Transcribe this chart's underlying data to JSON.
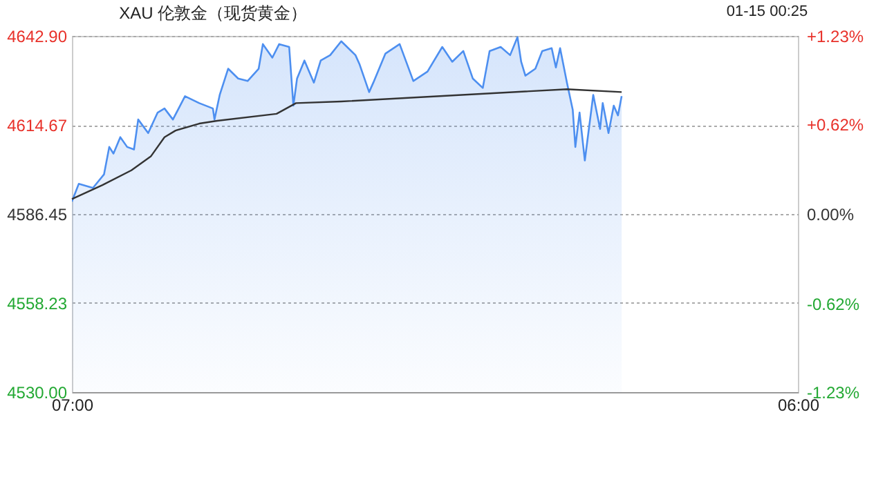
{
  "chart_data": {
    "type": "line",
    "title": "XAU 伦敦金（现货黄金）",
    "annotations": [
      "01-15 00:25"
    ],
    "xlim": [
      "--01-14T07:00",
      "--01-15T06:00"
    ],
    "xticks": [
      {
        "value": "--01-14T07:00",
        "label": "07:00"
      },
      {
        "value": "--01-15T06:00",
        "label": "06:00"
      }
    ],
    "ylim": [
      4530,
      4642.9
    ],
    "yticks": [
      {
        "value": 4530,
        "label": "4530.00"
      },
      4558.23,
      4586.45,
      4614.67,
      {
        "value": 4642.9,
        "label": "4642.90"
      }
    ],
    "y2lim": [
      -1.23,
      1.23
    ],
    "y2ticks": [
      {
        "value": -1.23,
        "label": "-1.23%"
      },
      {
        "value": -0.62,
        "label": "-0.62%"
      },
      {
        "value": 0,
        "label": "0.00%"
      },
      {
        "value": 0.62,
        "label": "+0.62%"
      },
      {
        "value": 1.23,
        "label": "+1.23%"
      }
    ],
    "grid": "y",
    "line_style": "solid",
    "series": [
      {
        "type": "area",
        "color": "#4d8ff0",
        "x": [
          "--01-14T07:00",
          "--01-14T07:13",
          "--01-14T07:40",
          "--01-14T08:01",
          "--01-14T08:11",
          "--01-14T08:19",
          "--01-14T08:32",
          "--01-14T08:45",
          "--01-14T08:58",
          "--01-14T09:06",
          "--01-14T09:25",
          "--01-14T09:43",
          "--01-14T09:56",
          "--01-14T10:12",
          "--01-14T10:35",
          "--01-14T11:02",
          "--01-14T11:28",
          "--01-14T11:31",
          "--01-14T11:41",
          "--01-14T11:57",
          "--01-14T12:16",
          "--01-14T12:34",
          "--01-14T12:55",
          "--01-14T13:03",
          "--01-14T13:21",
          "--01-14T13:34",
          "--01-14T13:53",
          "--01-14T14:01",
          "--01-14T14:08",
          "--01-14T14:22",
          "--01-14T14:40",
          "--01-14T14:53",
          "--01-14T15:11",
          "--01-14T15:32",
          "--01-14T15:59",
          "--01-14T16:07",
          "--01-14T16:25",
          "--01-14T16:33",
          "--01-14T16:56",
          "--01-14T17:23",
          "--01-14T17:49",
          "--01-14T18:16",
          "--01-14T18:44",
          "--01-14T19:03",
          "--01-14T19:24",
          "--01-14T19:42",
          "--01-14T20:01",
          "--01-14T20:14",
          "--01-14T20:35",
          "--01-14T20:53",
          "--01-14T21:07",
          "--01-14T21:14",
          "--01-14T21:22",
          "--01-14T21:41",
          "--01-14T21:54",
          "--01-14T22:12",
          "--01-14T22:20",
          "--01-14T22:28",
          "--01-14T22:41",
          "--01-14T22:52",
          "--01-14T22:57",
          "--01-14T23:05",
          "--01-14T23:15",
          "--01-14T23:31",
          "--01-14T23:44",
          "--01-14T23:49",
          "--01-15T00:00",
          "--01-15T00:10",
          "--01-15T00:18",
          "--01-15T00:25"
        ],
        "values": [
          4590.4,
          4596.0,
          4594.7,
          4599.0,
          4607.7,
          4605.6,
          4610.8,
          4607.7,
          4606.9,
          4616.4,
          4612.1,
          4618.6,
          4619.9,
          4616.4,
          4623.8,
          4621.6,
          4619.9,
          4616.4,
          4624.2,
          4632.5,
          4629.4,
          4628.6,
          4632.5,
          4640.3,
          4636.0,
          4640.3,
          4639.4,
          4620.8,
          4629.4,
          4635.1,
          4628.1,
          4635.1,
          4636.8,
          4641.2,
          4636.8,
          4633.8,
          4625.1,
          4628.1,
          4637.3,
          4640.3,
          4628.6,
          4631.6,
          4639.4,
          4634.7,
          4638.1,
          4629.4,
          4626.4,
          4638.1,
          4639.4,
          4636.8,
          4642.5,
          4634.7,
          4630.3,
          4632.5,
          4638.1,
          4639.0,
          4632.9,
          4639.0,
          4628.1,
          4619.5,
          4607.7,
          4618.6,
          4603.4,
          4624.2,
          4613.4,
          4621.6,
          4612.1,
          4620.8,
          4617.7,
          4623.8
        ]
      },
      {
        "type": "line",
        "color": "#333333",
        "x": [
          "--01-14T07:00",
          "--01-14T07:58",
          "--01-14T08:53",
          "--01-14T09:30",
          "--01-14T09:56",
          "--01-14T10:17",
          "--01-14T11:02",
          "--01-14T11:36",
          "--01-14T13:29",
          "--01-14T14:06",
          "--01-14T15:32",
          "--01-14T22:41",
          "--01-15T00:25"
        ],
        "values": [
          4591.2,
          4595.6,
          4600.3,
          4604.7,
          4610.8,
          4612.9,
          4615.1,
          4616.0,
          4618.2,
          4621.6,
          4622.1,
          4626.0,
          4625.1
        ]
      }
    ]
  }
}
